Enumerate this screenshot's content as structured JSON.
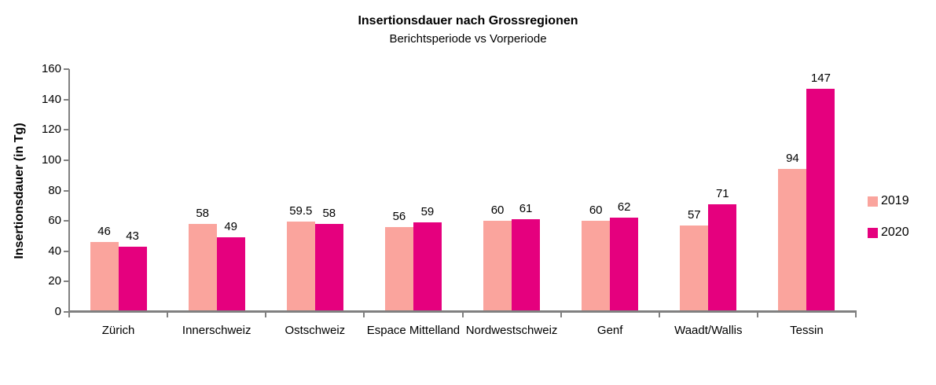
{
  "chart_data": {
    "type": "bar",
    "title": "Insertionsdauer nach Grossregionen",
    "subtitle": "Berichtsperiode vs Vorperiode",
    "ylabel": "Insertionsdauer (in Tg)",
    "xlabel": "",
    "categories": [
      "Zürich",
      "Innerschweiz",
      "Ostschweiz",
      "Espace Mittelland",
      "Nordwestschweiz",
      "Genf",
      "Waadt/Wallis",
      "Tessin"
    ],
    "series": [
      {
        "name": "2019",
        "color": "#FAA49D",
        "values": [
          46,
          58,
          59.5,
          56,
          60,
          60,
          57,
          94
        ]
      },
      {
        "name": "2020",
        "color": "#E5007E",
        "values": [
          43,
          49,
          58,
          59,
          61,
          62,
          71,
          147
        ]
      }
    ],
    "ylim": [
      0,
      160
    ],
    "yticks": [
      0,
      20,
      40,
      60,
      80,
      100,
      120,
      140,
      160
    ],
    "grid": false,
    "data_labels": true,
    "legend_position": "right",
    "axis_color": "#808080",
    "text_color": "#000000"
  }
}
